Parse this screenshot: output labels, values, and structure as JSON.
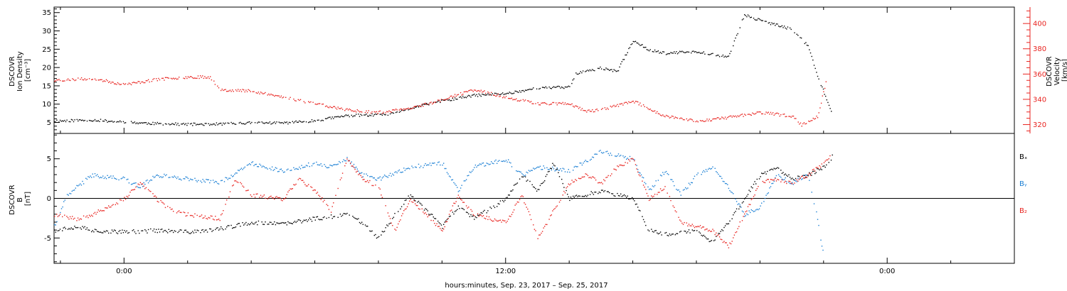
{
  "xlabel": "hours:minutes, Sep. 23, 2017 – Sep. 25, 2017",
  "x_tick_labels": [
    "0:00",
    "12:00",
    "0:00"
  ],
  "top_panel": {
    "left_label_lines": [
      "DSCOVR",
      "Ion Density",
      "[cm⁻³]"
    ],
    "right_label_lines": [
      "DSCOVR",
      "Velocity",
      "[km/s]"
    ],
    "left_ticks": [
      "5",
      "10",
      "15",
      "20",
      "25",
      "30",
      "35"
    ],
    "right_ticks": [
      "320",
      "340",
      "360",
      "380",
      "400"
    ]
  },
  "bottom_panel": {
    "left_label_lines": [
      "DSCOVR",
      "B",
      "[nT]"
    ],
    "left_ticks": [
      "-5",
      "0",
      "5"
    ],
    "legend": [
      {
        "label": "Bₓ",
        "color": "#000000"
      },
      {
        "label": "Bᵧ",
        "color": "#1a7fd4"
      },
      {
        "label": "B₂",
        "color": "#e8231f"
      }
    ]
  },
  "colors": {
    "density": "#000000",
    "velocity": "#e8231f",
    "bx": "#000000",
    "by": "#1a7fd4",
    "bz": "#e8231f",
    "axis": "#000000",
    "right_axis": "#e8231f"
  },
  "chart_data": [
    {
      "type": "scatter",
      "title": "",
      "x_unit": "hours from 2017-09-23 00:00",
      "xlim": [
        -2.2,
        28
      ],
      "xlabel": "hours:minutes, Sep. 23, 2017 – Sep. 25, 2017",
      "ylabel": "DSCOVR Ion Density [cm⁻³]",
      "ylim": [
        2,
        36.5
      ],
      "y2label": "DSCOVR Velocity [km/s]",
      "y2lim": [
        313,
        413
      ],
      "series": [
        {
          "name": "DSCOVR Ion Density",
          "axis": "left",
          "x": [
            -2.2,
            -1.0,
            0.0,
            1.0,
            2.0,
            3.0,
            4.0,
            5.0,
            6.0,
            7.0,
            8.0,
            8.5,
            9.0,
            10.0,
            11.0,
            12.0,
            13.0,
            14.0,
            14.2,
            15.0,
            15.5,
            16.0,
            16.5,
            17.0,
            18.0,
            19.0,
            19.5,
            20.0,
            21.0,
            21.5,
            21.8,
            22.3
          ],
          "y": [
            5.5,
            5.8,
            5.2,
            4.8,
            4.6,
            4.7,
            5.0,
            5.0,
            5.6,
            7.0,
            7.2,
            7.5,
            9.0,
            11.0,
            12.5,
            13.0,
            14.5,
            14.8,
            18.5,
            20.0,
            19.0,
            27.5,
            25.0,
            24.0,
            24.5,
            23.0,
            34.5,
            33.0,
            30.5,
            26.0,
            18.0,
            6.5
          ]
        },
        {
          "name": "DSCOVR Velocity",
          "axis": "right",
          "x": [
            -2.2,
            -1.0,
            0.0,
            1.0,
            2.0,
            2.7,
            3.0,
            4.0,
            5.0,
            6.0,
            7.0,
            8.0,
            9.0,
            10.0,
            11.0,
            12.0,
            13.0,
            14.0,
            14.5,
            15.0,
            16.0,
            17.0,
            18.0,
            19.0,
            20.0,
            21.0,
            21.3,
            21.8,
            22.1
          ],
          "y": [
            355,
            357,
            352,
            356,
            358,
            358,
            348,
            347,
            342,
            337,
            332,
            330,
            333,
            340,
            348,
            342,
            337,
            337,
            331,
            332,
            339,
            327,
            323,
            326,
            330,
            327,
            320,
            327,
            357
          ]
        }
      ]
    },
    {
      "type": "scatter",
      "title": "",
      "x_unit": "hours from 2017-09-23 00:00",
      "xlim": [
        -2.2,
        28
      ],
      "xlabel": "hours:minutes, Sep. 23, 2017 – Sep. 25, 2017",
      "ylabel": "DSCOVR B [nT]",
      "ylim": [
        -8.2,
        8.2
      ],
      "series": [
        {
          "name": "Bₓ",
          "x": [
            -2.2,
            -1.5,
            -1.0,
            0.0,
            1.0,
            2.0,
            3.0,
            4.0,
            5.0,
            6.0,
            7.0,
            7.5,
            8.0,
            8.5,
            9.0,
            9.5,
            10.0,
            10.5,
            11.0,
            12.0,
            12.5,
            13.0,
            13.5,
            14.0,
            15.0,
            16.0,
            16.5,
            17.0,
            18.0,
            18.5,
            19.0,
            19.5,
            20.0,
            20.5,
            21.0,
            21.5,
            22.0,
            22.3
          ],
          "y": [
            -4.0,
            -3.5,
            -4.0,
            -4.2,
            -4.0,
            -4.2,
            -3.8,
            -3.0,
            -3.2,
            -2.5,
            -2.0,
            -3.0,
            -5.0,
            -2.0,
            0.5,
            -1.5,
            -3.5,
            -1.0,
            -2.5,
            0.0,
            3.0,
            1.0,
            4.5,
            0.0,
            1.0,
            0.0,
            -4.0,
            -4.5,
            -4.0,
            -5.5,
            -3.0,
            0.0,
            3.0,
            4.0,
            2.5,
            3.0,
            4.0,
            5.5
          ]
        },
        {
          "name": "Bᵧ",
          "x": [
            -2.2,
            -1.8,
            -1.5,
            -1.0,
            0.0,
            0.5,
            1.0,
            2.0,
            3.0,
            4.0,
            5.0,
            6.0,
            6.5,
            7.0,
            7.5,
            8.0,
            9.0,
            10.0,
            10.5,
            11.0,
            12.0,
            12.5,
            13.0,
            14.0,
            15.0,
            16.0,
            16.5,
            17.0,
            17.5,
            18.0,
            18.5,
            19.0,
            19.5,
            20.0,
            20.5,
            21.0,
            21.5,
            21.8,
            22.0
          ],
          "y": [
            -3.5,
            0.5,
            1.5,
            3.0,
            2.5,
            1.5,
            3.0,
            2.5,
            2.0,
            4.5,
            3.5,
            4.5,
            4.0,
            5.0,
            3.0,
            2.5,
            4.0,
            4.5,
            1.0,
            4.0,
            5.0,
            3.0,
            4.0,
            3.5,
            6.0,
            5.0,
            1.0,
            3.5,
            0.5,
            3.0,
            4.0,
            1.5,
            -2.0,
            -1.0,
            3.0,
            2.0,
            3.0,
            -2.5,
            -7.5
          ]
        },
        {
          "name": "B₂",
          "x": [
            -2.2,
            -1.5,
            -1.0,
            0.0,
            0.5,
            1.0,
            1.5,
            2.0,
            3.0,
            3.5,
            4.0,
            5.0,
            5.5,
            6.0,
            6.5,
            7.0,
            7.5,
            8.0,
            8.5,
            9.0,
            9.5,
            10.0,
            10.5,
            11.0,
            12.0,
            12.5,
            13.0,
            14.0,
            14.5,
            15.0,
            15.5,
            16.0,
            16.5,
            17.0,
            17.5,
            18.0,
            18.5,
            19.0,
            19.5,
            20.0,
            20.5,
            21.0,
            21.5,
            22.0,
            22.3
          ],
          "y": [
            -2.0,
            -2.5,
            -2.0,
            0.0,
            2.0,
            0.0,
            -1.5,
            -2.0,
            -2.5,
            2.5,
            0.5,
            0.0,
            2.5,
            1.0,
            -1.5,
            5.0,
            2.5,
            1.5,
            -4.0,
            0.0,
            -2.0,
            -4.0,
            0.5,
            -2.0,
            -3.0,
            0.5,
            -5.0,
            2.0,
            3.0,
            2.0,
            4.0,
            5.0,
            0.0,
            1.5,
            -3.0,
            -3.5,
            -4.0,
            -6.0,
            -2.0,
            2.0,
            2.5,
            2.0,
            3.0,
            4.5,
            6.0
          ]
        }
      ]
    }
  ]
}
